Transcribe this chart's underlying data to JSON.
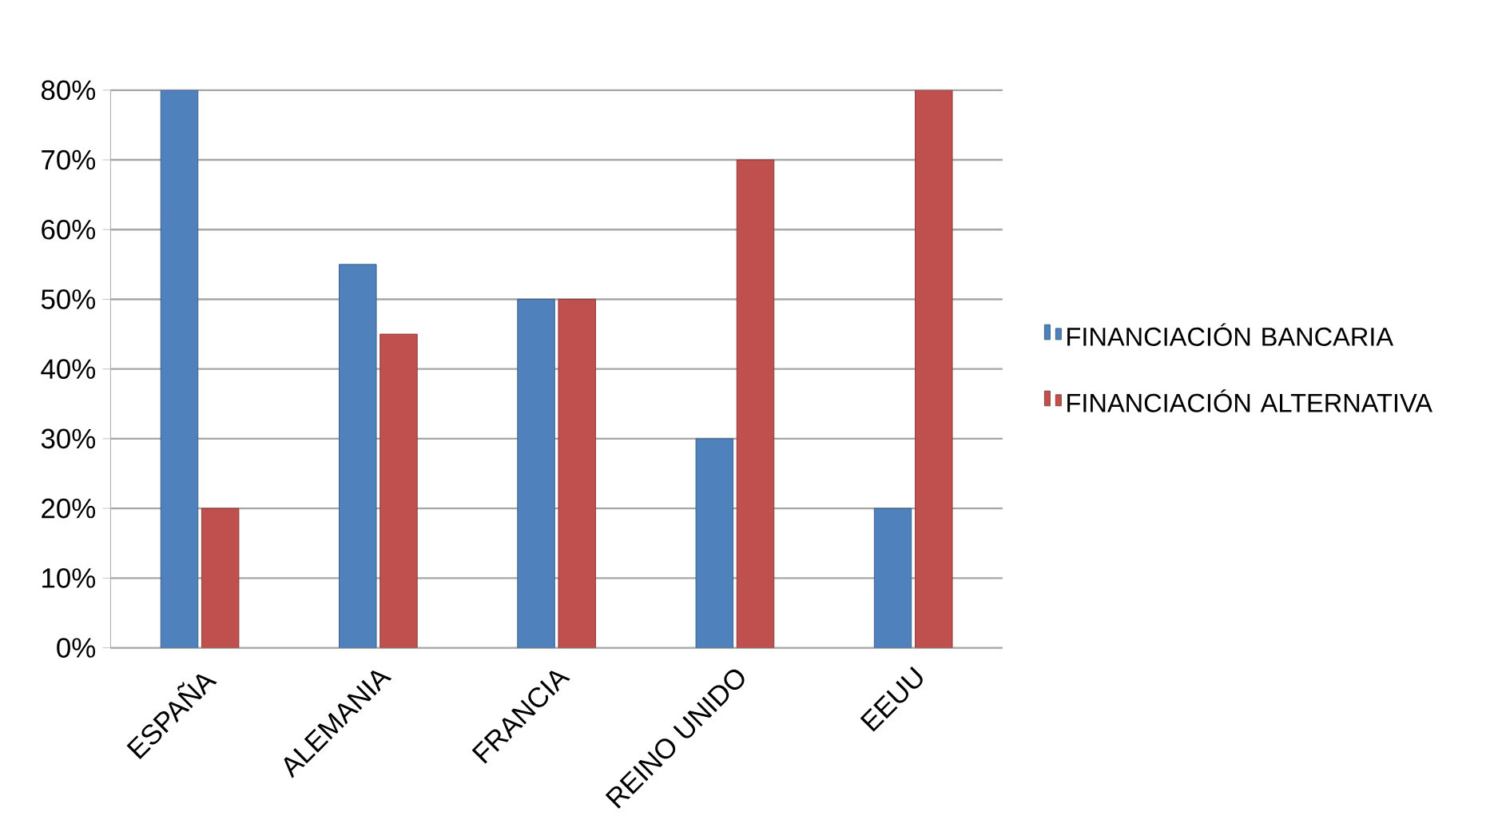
{
  "chart_data": {
    "type": "bar",
    "categories": [
      "ESPAÑA",
      "ALEMANIA",
      "FRANCIA",
      "REINO UNIDO",
      "EEUU"
    ],
    "series": [
      {
        "name": "FINANCIACIÓN BANCARIA",
        "color": "#4f81bd",
        "values": [
          80,
          55,
          50,
          30,
          20
        ]
      },
      {
        "name": "FINANCIACIÓN ALTERNATIVA",
        "color": "#c0504d",
        "values": [
          20,
          45,
          50,
          70,
          80
        ]
      }
    ],
    "ylim": [
      0,
      80
    ],
    "yticks": [
      {
        "value": 0,
        "label": "0%"
      },
      {
        "value": 10,
        "label": "10%"
      },
      {
        "value": 20,
        "label": "20%"
      },
      {
        "value": 30,
        "label": "30%"
      },
      {
        "value": 40,
        "label": "40%"
      },
      {
        "value": 50,
        "label": "50%"
      },
      {
        "value": 60,
        "label": "60%"
      },
      {
        "value": 70,
        "label": "70%"
      },
      {
        "value": 80,
        "label": "80%"
      }
    ],
    "grid": "y",
    "legend": "right"
  }
}
